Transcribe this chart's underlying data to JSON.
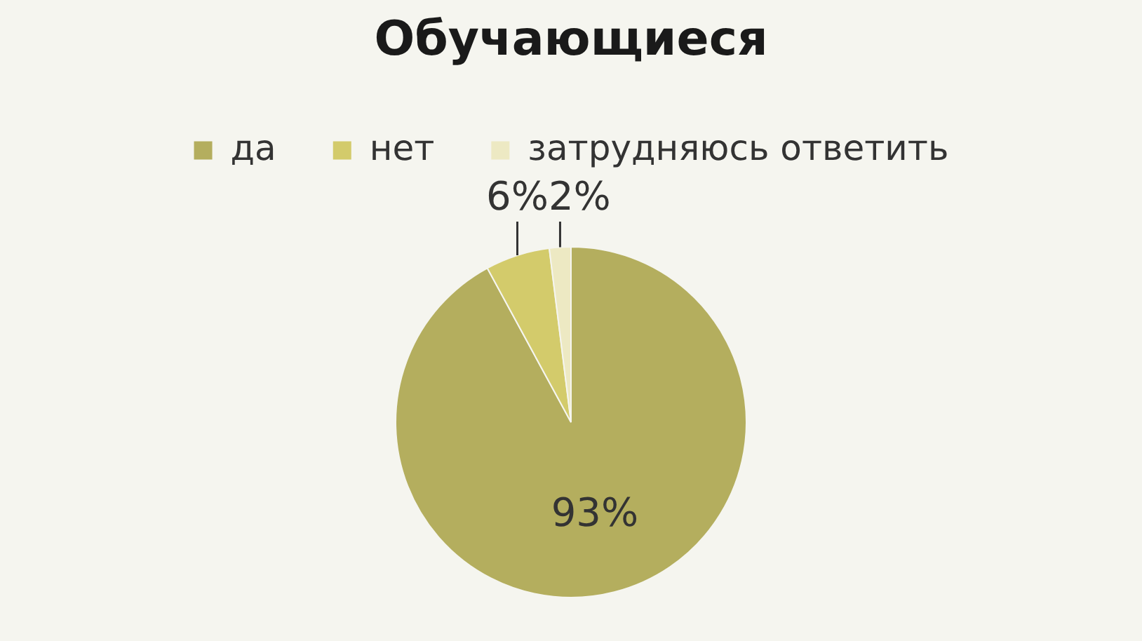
{
  "chart_data": {
    "type": "pie",
    "title": "Обучающиеся",
    "categories": [
      "да",
      "нет",
      "затрудняюсь ответить"
    ],
    "values": [
      93,
      6,
      2
    ],
    "colors": [
      "#b4ae5e",
      "#d3cb6b",
      "#ede9c3"
    ],
    "value_labels": [
      "93%",
      "6%",
      "2%"
    ],
    "legend": "top"
  }
}
